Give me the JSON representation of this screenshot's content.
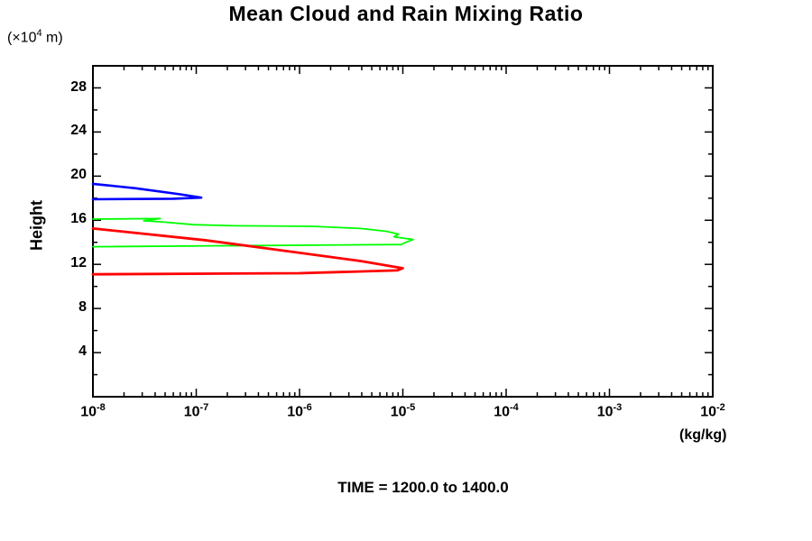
{
  "title": "Mean Cloud and Rain Mixing Ratio",
  "y_unit_label": {
    "prefix": "(×10",
    "exp": "4",
    "suffix": " m)"
  },
  "ylabel": "Height",
  "xlabel": "(kg/kg)",
  "footer": "TIME = 1200.0 to 1400.0",
  "chart_data": {
    "type": "line",
    "title": "Mean Cloud and Rain Mixing Ratio",
    "xlabel": "(kg/kg)",
    "ylabel": "Height (×10^4 m)",
    "x_scale": "log",
    "x_range": [
      1e-08,
      0.01
    ],
    "y_range": [
      0,
      30
    ],
    "grid": false,
    "legend": "none",
    "annotation": "TIME = 1200.0 to 1400.0",
    "x_ticks": [
      {
        "base": "10",
        "exp": "-8",
        "value": 1e-08
      },
      {
        "base": "10",
        "exp": "-7",
        "value": 1e-07
      },
      {
        "base": "10",
        "exp": "-6",
        "value": 1e-06
      },
      {
        "base": "10",
        "exp": "-5",
        "value": 1e-05
      },
      {
        "base": "10",
        "exp": "-4",
        "value": 0.0001
      },
      {
        "base": "10",
        "exp": "-3",
        "value": 0.001
      },
      {
        "base": "10",
        "exp": "-2",
        "value": 0.01
      }
    ],
    "y_ticks": [
      4,
      8,
      12,
      16,
      20,
      24,
      28
    ],
    "y_minor_ticks": [
      2,
      6,
      10,
      14,
      18,
      22,
      26,
      30
    ],
    "series": [
      {
        "name": "series-blue",
        "color": "#0000ff",
        "stroke_width": 2.6,
        "points": [
          [
            1e-08,
            19.3
          ],
          [
            2.6e-08,
            18.9
          ],
          [
            7e-08,
            18.35
          ],
          [
            1.12e-07,
            18.05
          ],
          [
            6e-08,
            17.95
          ],
          [
            1e-08,
            17.9
          ]
        ]
      },
      {
        "name": "series-green",
        "color": "#00ff00",
        "stroke_width": 1.8,
        "points": [
          [
            1e-08,
            16.1
          ],
          [
            4.5e-08,
            16.15
          ],
          [
            3.1e-08,
            15.95
          ],
          [
            4.7e-08,
            15.85
          ],
          [
            9.5e-08,
            15.6
          ],
          [
            2.4e-07,
            15.5
          ],
          [
            1.35e-06,
            15.45
          ],
          [
            3.9e-06,
            15.25
          ],
          [
            6.9e-06,
            15.0
          ],
          [
            9.1e-06,
            14.75
          ],
          [
            8.2e-06,
            14.5
          ],
          [
            1.26e-05,
            14.25
          ],
          [
            1.07e-05,
            14.0
          ],
          [
            9.7e-06,
            13.8
          ],
          [
            1e-08,
            13.6
          ]
        ]
      },
      {
        "name": "series-red",
        "color": "#ff0000",
        "stroke_width": 2.8,
        "points": [
          [
            1e-08,
            15.25
          ],
          [
            1.2e-07,
            14.2
          ],
          [
            5.3e-07,
            13.4
          ],
          [
            3.9e-06,
            12.3
          ],
          [
            1e-05,
            11.65
          ],
          [
            8.8e-06,
            11.45
          ],
          [
            1e-06,
            11.2
          ],
          [
            1e-08,
            11.1
          ]
        ]
      }
    ]
  }
}
